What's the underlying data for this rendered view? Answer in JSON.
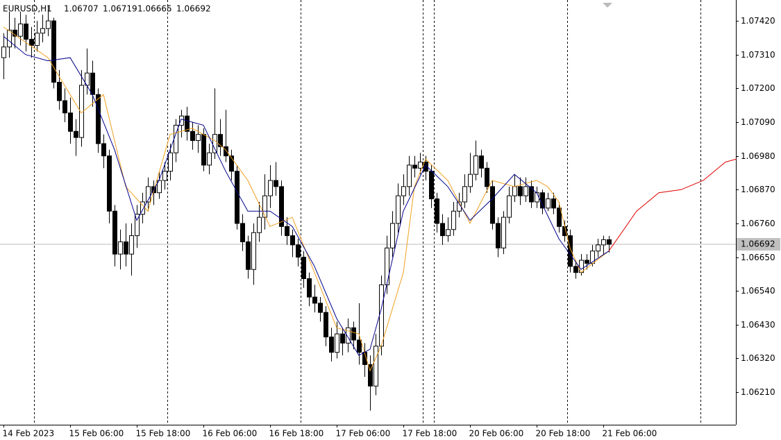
{
  "chart_data": {
    "type": "candlestick",
    "title": "EURUSD,H1",
    "candles": [
      [
        1.073,
        1.0738,
        1.0723,
        1.07335
      ],
      [
        1.07335,
        1.0745,
        1.073,
        1.0739
      ],
      [
        1.0739,
        1.0743,
        1.0733,
        1.0737
      ],
      [
        1.0737,
        1.0745,
        1.0734,
        1.0741
      ],
      [
        1.0741,
        1.0744,
        1.0732,
        1.0736
      ],
      [
        1.0736,
        1.074,
        1.073,
        1.0734
      ],
      [
        1.0734,
        1.0742,
        1.0732,
        1.0738
      ],
      [
        1.0738,
        1.0744,
        1.0735,
        1.07395
      ],
      [
        1.07395,
        1.0747,
        1.0737,
        1.0742
      ],
      [
        1.0742,
        1.0743,
        1.072,
        1.0722
      ],
      [
        1.0722,
        1.0726,
        1.0713,
        1.0716
      ],
      [
        1.0716,
        1.072,
        1.0709,
        1.0712
      ],
      [
        1.0712,
        1.0717,
        1.0702,
        1.0706
      ],
      [
        1.0706,
        1.071,
        1.0698,
        1.0704
      ],
      [
        1.0704,
        1.0726,
        1.0701,
        1.0721
      ],
      [
        1.0721,
        1.0733,
        1.0718,
        1.0725
      ],
      [
        1.0725,
        1.0729,
        1.0714,
        1.0718
      ],
      [
        1.0718,
        1.072,
        1.0699,
        1.0702
      ],
      [
        1.0702,
        1.0705,
        1.0694,
        1.0698
      ],
      [
        1.0698,
        1.07,
        1.0676,
        1.068
      ],
      [
        1.068,
        1.0682,
        1.0662,
        1.0666
      ],
      [
        1.0666,
        1.0674,
        1.0661,
        1.067
      ],
      [
        1.067,
        1.0676,
        1.0662,
        1.0666
      ],
      [
        1.0666,
        1.0676,
        1.0659,
        1.0672
      ],
      [
        1.0672,
        1.0682,
        1.0668,
        1.0679
      ],
      [
        1.0679,
        1.0686,
        1.0676,
        1.0683
      ],
      [
        1.0683,
        1.0691,
        1.068,
        1.0688
      ],
      [
        1.0688,
        1.069,
        1.0682,
        1.0686
      ],
      [
        1.0686,
        1.0693,
        1.0684,
        1.069
      ],
      [
        1.069,
        1.0696,
        1.0687,
        1.0693
      ],
      [
        1.0693,
        1.0702,
        1.069,
        1.0699
      ],
      [
        1.0699,
        1.071,
        1.0696,
        1.0708
      ],
      [
        1.0708,
        1.0713,
        1.0704,
        1.0711
      ],
      [
        1.0711,
        1.0714,
        1.0703,
        1.0706
      ],
      [
        1.0706,
        1.0709,
        1.07,
        1.0703
      ],
      [
        1.0703,
        1.0708,
        1.0699,
        1.0705
      ],
      [
        1.0705,
        1.0707,
        1.0693,
        1.0695
      ],
      [
        1.0695,
        1.0702,
        1.0692,
        1.0699
      ],
      [
        1.0699,
        1.072,
        1.0697,
        1.0705
      ],
      [
        1.0705,
        1.071,
        1.0698,
        1.0701
      ],
      [
        1.0701,
        1.0713,
        1.0696,
        1.0698
      ],
      [
        1.0698,
        1.07,
        1.069,
        1.0693
      ],
      [
        1.0693,
        1.0695,
        1.0674,
        1.0676
      ],
      [
        1.0676,
        1.0679,
        1.0667,
        1.067
      ],
      [
        1.067,
        1.0672,
        1.0658,
        1.0661
      ],
      [
        1.0661,
        1.0676,
        1.0656,
        1.0673
      ],
      [
        1.0673,
        1.0683,
        1.067,
        1.0678
      ],
      [
        1.0678,
        1.0692,
        1.0674,
        1.0685
      ],
      [
        1.0685,
        1.0695,
        1.0681,
        1.069
      ],
      [
        1.069,
        1.0696,
        1.0685,
        1.0688
      ],
      [
        1.0688,
        1.069,
        1.0672,
        1.0675
      ],
      [
        1.0675,
        1.0678,
        1.0669,
        1.0672
      ],
      [
        1.0672,
        1.0674,
        1.0665,
        1.0669
      ],
      [
        1.0669,
        1.0671,
        1.0662,
        1.0665
      ],
      [
        1.0665,
        1.0667,
        1.0655,
        1.0658
      ],
      [
        1.0658,
        1.066,
        1.0649,
        1.0652
      ],
      [
        1.0652,
        1.0656,
        1.0647,
        1.065
      ],
      [
        1.065,
        1.0652,
        1.0644,
        1.0647
      ],
      [
        1.0647,
        1.0649,
        1.0636,
        1.0639
      ],
      [
        1.0639,
        1.0642,
        1.0631,
        1.0634
      ],
      [
        1.0634,
        1.0644,
        1.0632,
        1.064
      ],
      [
        1.064,
        1.0642,
        1.0633,
        1.0637
      ],
      [
        1.0637,
        1.0645,
        1.0634,
        1.0642
      ],
      [
        1.0642,
        1.0644,
        1.0635,
        1.0638
      ],
      [
        1.0638,
        1.065,
        1.063,
        1.0634
      ],
      [
        1.0634,
        1.0637,
        1.0626,
        1.063
      ],
      [
        1.063,
        1.0633,
        1.0615,
        1.0623
      ],
      [
        1.0623,
        1.064,
        1.062,
        1.0636
      ],
      [
        1.0636,
        1.0659,
        1.0633,
        1.0656
      ],
      [
        1.0656,
        1.0672,
        1.0653,
        1.0668
      ],
      [
        1.0668,
        1.068,
        1.0665,
        1.0676
      ],
      [
        1.0676,
        1.0689,
        1.0673,
        1.0685
      ],
      [
        1.0685,
        1.0692,
        1.0682,
        1.0688
      ],
      [
        1.0688,
        1.0698,
        1.0685,
        1.0695
      ],
      [
        1.0695,
        1.0698,
        1.0691,
        1.0694
      ],
      [
        1.0694,
        1.0699,
        1.0692,
        1.0696
      ],
      [
        1.0696,
        1.0698,
        1.069,
        1.0693
      ],
      [
        1.0693,
        1.0695,
        1.0681,
        1.0684
      ],
      [
        1.0684,
        1.0686,
        1.0673,
        1.0676
      ],
      [
        1.0676,
        1.0679,
        1.0669,
        1.0672
      ],
      [
        1.0672,
        1.0678,
        1.067,
        1.0674
      ],
      [
        1.0674,
        1.0683,
        1.0672,
        1.068
      ],
      [
        1.068,
        1.0686,
        1.0678,
        1.0683
      ],
      [
        1.0683,
        1.0692,
        1.0681,
        1.0688
      ],
      [
        1.0688,
        1.0699,
        1.0686,
        1.0692
      ],
      [
        1.0692,
        1.0703,
        1.069,
        1.0698
      ],
      [
        1.0698,
        1.07,
        1.0691,
        1.0694
      ],
      [
        1.0694,
        1.0696,
        1.0686,
        1.0688
      ],
      [
        1.0688,
        1.069,
        1.0674,
        1.0676
      ],
      [
        1.0676,
        1.0678,
        1.0665,
        1.0668
      ],
      [
        1.0668,
        1.068,
        1.0666,
        1.0678
      ],
      [
        1.0678,
        1.0688,
        1.0676,
        1.0685
      ],
      [
        1.0685,
        1.0692,
        1.0683,
        1.0688
      ],
      [
        1.0688,
        1.0691,
        1.0682,
        1.0685
      ],
      [
        1.0685,
        1.0691,
        1.0683,
        1.0688
      ],
      [
        1.0688,
        1.069,
        1.0681,
        1.0683
      ],
      [
        1.0683,
        1.0688,
        1.0681,
        1.0686
      ],
      [
        1.0686,
        1.0687,
        1.0679,
        1.0681
      ],
      [
        1.0681,
        1.0686,
        1.068,
        1.0684
      ],
      [
        1.0684,
        1.0686,
        1.0679,
        1.0681
      ],
      [
        1.0681,
        1.0683,
        1.0673,
        1.0675
      ],
      [
        1.0675,
        1.0677,
        1.067,
        1.0672
      ],
      [
        1.0672,
        1.0674,
        1.066,
        1.0662
      ],
      [
        1.0662,
        1.0664,
        1.0658,
        1.066
      ],
      [
        1.066,
        1.0666,
        1.0659,
        1.0664
      ],
      [
        1.0664,
        1.0666,
        1.0661,
        1.0663
      ],
      [
        1.0663,
        1.0669,
        1.0662,
        1.0667
      ],
      [
        1.0667,
        1.0671,
        1.0665,
        1.0669
      ],
      [
        1.0669,
        1.0672,
        1.0666,
        1.06707
      ],
      [
        1.06707,
        1.06719,
        1.06665,
        1.06692
      ]
    ],
    "series": [
      {
        "color": "#f0a020",
        "x": [
          0,
          4,
          8,
          10,
          14,
          18,
          22,
          26,
          30,
          34,
          38,
          40,
          44,
          48,
          52,
          56,
          60,
          64,
          66,
          68,
          72,
          74,
          76,
          80,
          84,
          88,
          92,
          96,
          98,
          100,
          102,
          104,
          109
        ],
        "values": [
          1.074,
          1.0735,
          1.073,
          1.0724,
          1.0712,
          1.0718,
          1.0688,
          1.068,
          1.0705,
          1.0707,
          1.0703,
          1.07,
          1.069,
          1.0675,
          1.0678,
          1.066,
          1.0642,
          1.064,
          1.0628,
          1.0636,
          1.066,
          1.0688,
          1.0697,
          1.069,
          1.0676,
          1.069,
          1.0688,
          1.069,
          1.0688,
          1.0683,
          1.0668,
          1.066,
          1.0667
        ]
      },
      {
        "color": "#00008b",
        "x": [
          0,
          4,
          8,
          12,
          16,
          20,
          24,
          28,
          32,
          36,
          40,
          44,
          48,
          52,
          56,
          60,
          64,
          66,
          68,
          72,
          76,
          80,
          84,
          88,
          92,
          96,
          100,
          104,
          109
        ],
        "values": [
          1.0737,
          1.0731,
          1.0729,
          1.073,
          1.0718,
          1.07,
          1.0677,
          1.069,
          1.071,
          1.0708,
          1.0693,
          1.068,
          1.068,
          1.0675,
          1.0662,
          1.0645,
          1.0633,
          1.0635,
          1.0648,
          1.068,
          1.0695,
          1.0688,
          1.0677,
          1.0684,
          1.0692,
          1.0686,
          1.0671,
          1.0661,
          1.0667
        ]
      },
      {
        "color": "#e00000",
        "x": [
          109,
          114,
          118,
          122,
          126,
          130,
          132
        ],
        "values": [
          1.0667,
          1.068,
          1.0686,
          1.0687,
          1.069,
          1.0696,
          1.0697
        ]
      }
    ],
    "last_price": 1.06692,
    "xlim": [
      -0.625,
      131.875
    ],
    "ylim": [
      1.06104,
      1.07488
    ],
    "xticks": [
      {
        "value": 0,
        "label": "14 Feb 2023"
      },
      {
        "value": 12,
        "label": "15 Feb 06:00"
      },
      {
        "value": 24,
        "label": "15 Feb 18:00"
      },
      {
        "value": 36,
        "label": "16 Feb 06:00"
      },
      {
        "value": 48,
        "label": "16 Feb 18:00"
      },
      {
        "value": 60,
        "label": "17 Feb 06:00"
      },
      {
        "value": 72,
        "label": "17 Feb 18:00"
      },
      {
        "value": 84,
        "label": "20 Feb 06:00"
      },
      {
        "value": 96,
        "label": "20 Feb 18:00"
      },
      {
        "value": 108,
        "label": "21 Feb 06:00"
      }
    ],
    "yticks": [
      {
        "value": 1.0742,
        "label": "1.07420"
      },
      {
        "value": 1.0731,
        "label": "1.07310"
      },
      {
        "value": 1.072,
        "label": "1.07200"
      },
      {
        "value": 1.0709,
        "label": "1.07090"
      },
      {
        "value": 1.0698,
        "label": "1.06980"
      },
      {
        "value": 1.0687,
        "label": "1.06870"
      },
      {
        "value": 1.0676,
        "label": "1.06760"
      },
      {
        "value": 1.0665,
        "label": "1.06650"
      },
      {
        "value": 1.0654,
        "label": "1.06540"
      },
      {
        "value": 1.0643,
        "label": "1.06430"
      },
      {
        "value": 1.0632,
        "label": "1.06320"
      },
      {
        "value": 1.0621,
        "label": "1.06210"
      }
    ],
    "period_separators": [
      5.5,
      29.5,
      53.5,
      75.5,
      77.5,
      101.5,
      125.5
    ]
  }
}
